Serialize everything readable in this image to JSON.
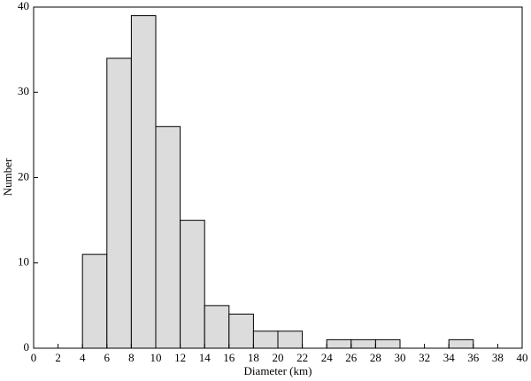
{
  "chart_data": {
    "type": "histogram",
    "xlabel": "Diameter (km)",
    "ylabel": "Number",
    "bins": [
      4,
      6,
      8,
      10,
      12,
      14,
      16,
      18,
      20,
      22,
      24,
      26,
      28,
      30,
      32,
      34,
      36
    ],
    "counts": [
      11,
      34,
      39,
      26,
      15,
      5,
      4,
      2,
      2,
      0,
      1,
      1,
      1,
      0,
      0,
      1
    ],
    "color": "#dcdcdc",
    "xlim": [
      0,
      40
    ],
    "xticks": [
      0,
      2,
      4,
      6,
      8,
      10,
      12,
      14,
      16,
      18,
      20,
      22,
      24,
      26,
      28,
      30,
      32,
      34,
      36,
      38,
      40
    ],
    "ylim": [
      0,
      40
    ],
    "yticks": [
      0,
      10,
      20,
      30,
      40
    ]
  }
}
